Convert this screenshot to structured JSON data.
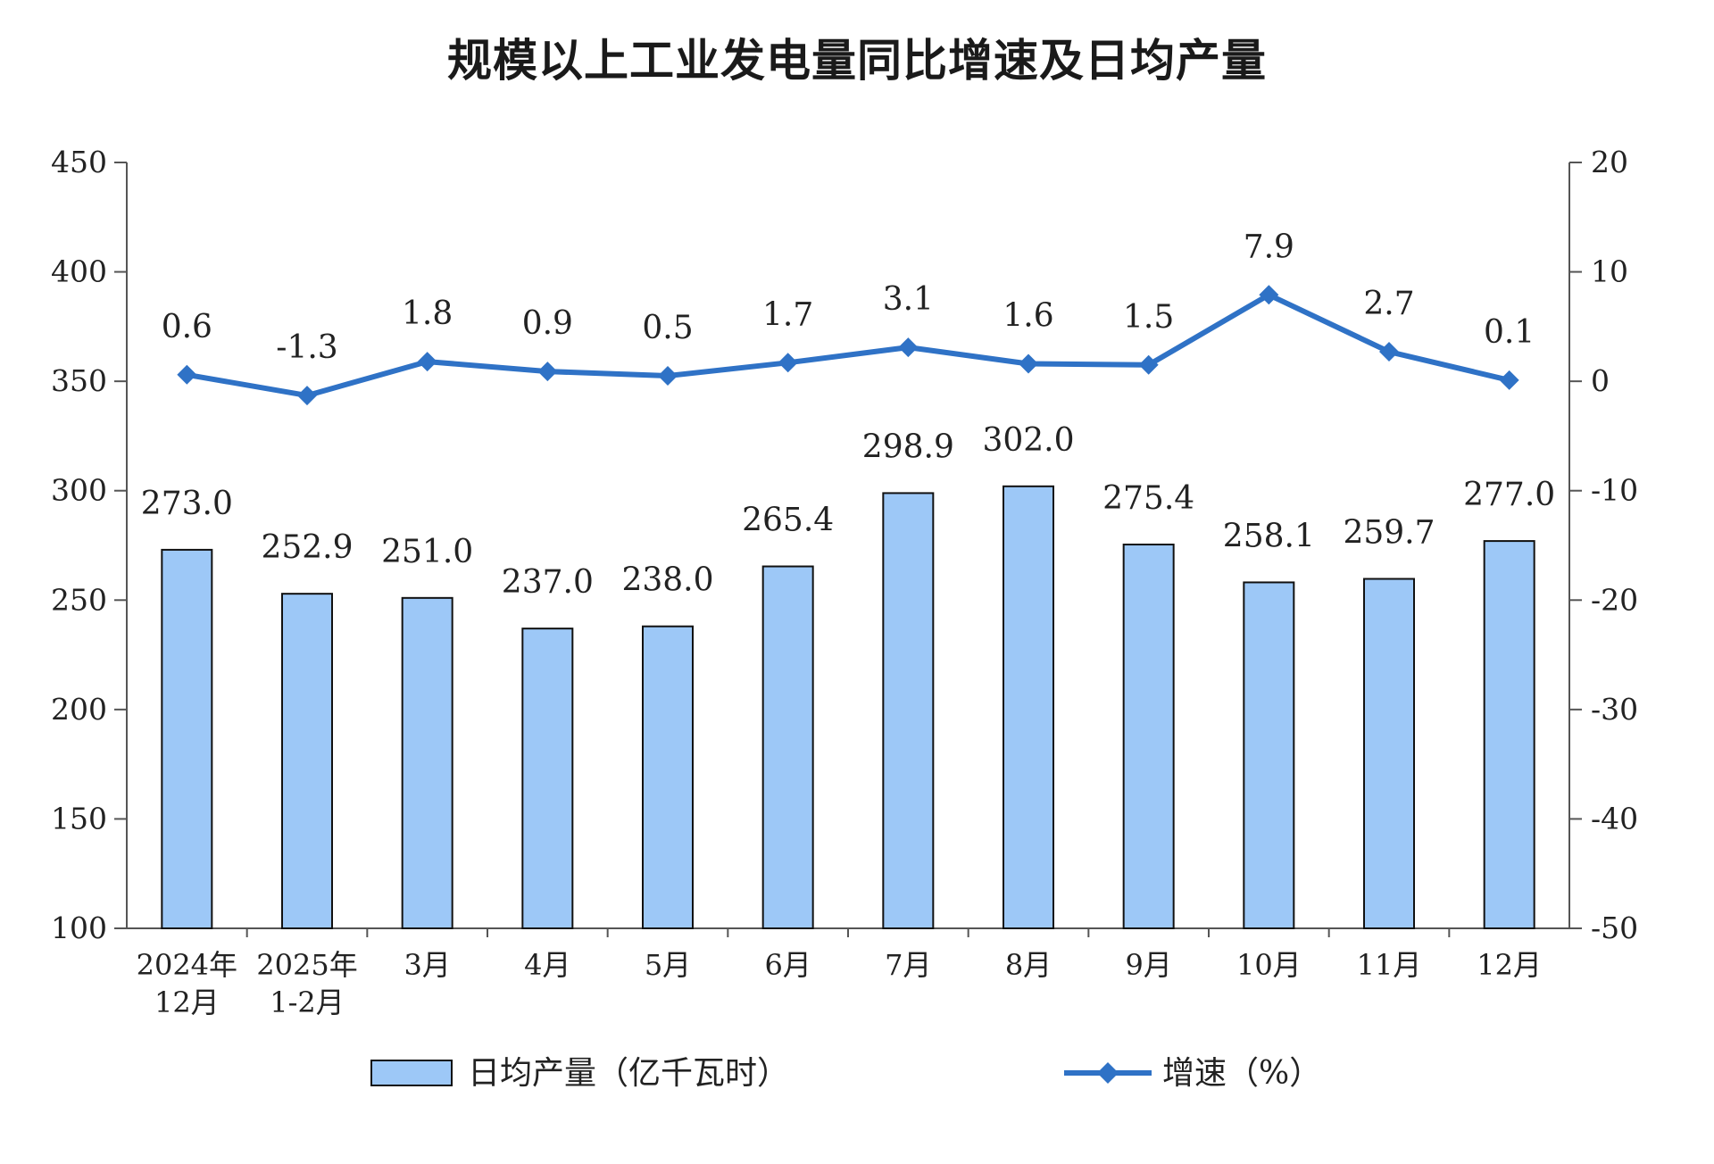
{
  "title": "规模以上工业发电量同比增速及日均产量",
  "chart_data": {
    "type": "bar",
    "title": "规模以上工业发电量同比增速及日均产量",
    "categories": [
      [
        "2024年",
        "12月"
      ],
      [
        "2025年",
        "1-2月"
      ],
      [
        "3月"
      ],
      [
        "4月"
      ],
      [
        "5月"
      ],
      [
        "6月"
      ],
      [
        "7月"
      ],
      [
        "8月"
      ],
      [
        "9月"
      ],
      [
        "10月"
      ],
      [
        "11月"
      ],
      [
        "12月"
      ]
    ],
    "left_axis": {
      "ylim": [
        100,
        450
      ],
      "ticks": [
        450,
        400,
        350,
        300,
        250,
        200,
        150,
        100
      ]
    },
    "right_axis": {
      "ylim": [
        -50,
        20
      ],
      "ticks": [
        20,
        10,
        0,
        -10,
        -20,
        -30,
        -40,
        -50
      ]
    },
    "series": [
      {
        "name": "日均产量（亿千瓦时）",
        "type": "bar",
        "axis": "left",
        "color": "#9dc8f7",
        "values": [
          273.0,
          252.9,
          251.0,
          237.0,
          238.0,
          265.4,
          298.9,
          302.0,
          275.4,
          258.1,
          259.7,
          277.0
        ],
        "labels": [
          "273.0",
          "252.9",
          "251.0",
          "237.0",
          "238.0",
          "265.4",
          "298.9",
          "302.0",
          "275.4",
          "258.1",
          "259.7",
          "277.0"
        ]
      },
      {
        "name": "增速（%）",
        "type": "line",
        "axis": "right",
        "color": "#2f72c6",
        "marker": "diamond",
        "values": [
          0.6,
          -1.3,
          1.8,
          0.9,
          0.5,
          1.7,
          3.1,
          1.6,
          1.5,
          7.9,
          2.7,
          0.1
        ],
        "labels": [
          "0.6",
          "-1.3",
          "1.8",
          "0.9",
          "0.5",
          "1.7",
          "3.1",
          "1.6",
          "1.5",
          "7.9",
          "2.7",
          "0.1"
        ]
      }
    ],
    "grid": false,
    "legend": "bottom"
  }
}
